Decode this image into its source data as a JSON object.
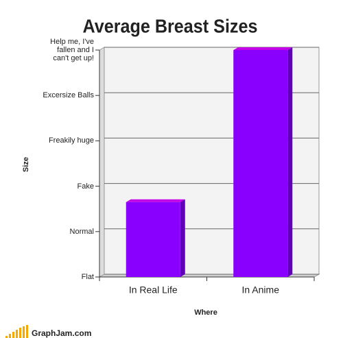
{
  "chart_data": {
    "type": "bar",
    "title": "Average Breast Sizes",
    "x_label": "Where",
    "y_label": "Size",
    "categories": [
      "In Real Life",
      "In Anime"
    ],
    "values": [
      1.65,
      5
    ],
    "color": "#8a00ff",
    "ylim": [
      0,
      5
    ],
    "yticks": [
      {
        "value": 0,
        "label": "Flat"
      },
      {
        "value": 1,
        "label": "Normal"
      },
      {
        "value": 2,
        "label": "Fake"
      },
      {
        "value": 3,
        "label": "Freakily huge"
      },
      {
        "value": 4,
        "label": "Excersize Balls"
      },
      {
        "value": 5,
        "label": "Help me, I've fallen and I can't get up!"
      }
    ],
    "grid": true
  },
  "footer": "GraphJam.com"
}
